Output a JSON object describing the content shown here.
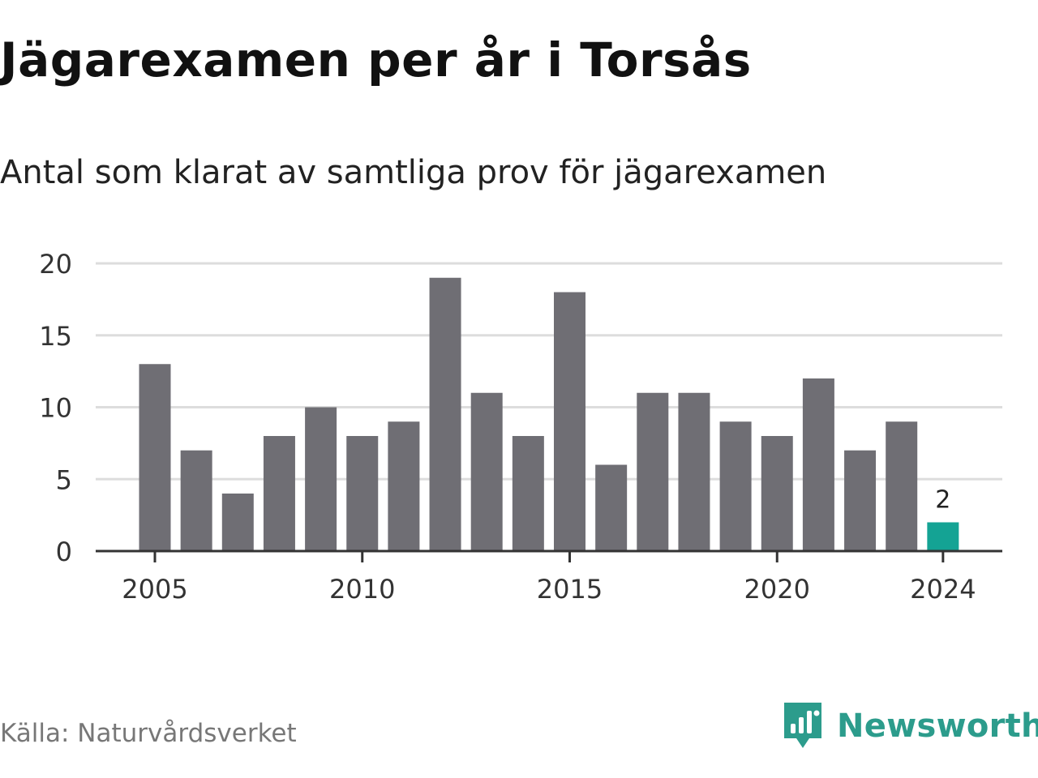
{
  "title": "Jägarexamen per år i Torsås",
  "subtitle": "Antal som klarat av samtliga prov för jägarexamen",
  "source": "Källa: Naturvårdsverket",
  "brand": "Newsworthy",
  "colors": {
    "bar": "#6f6e74",
    "highlight": "#14a394",
    "grid": "#dddddd",
    "axis": "#333333",
    "brand": "#2c9c8c"
  },
  "chart_data": {
    "type": "bar",
    "categories": [
      "2005",
      "2006",
      "2007",
      "2008",
      "2009",
      "2010",
      "2011",
      "2012",
      "2013",
      "2014",
      "2015",
      "2016",
      "2017",
      "2018",
      "2019",
      "2020",
      "2021",
      "2022",
      "2023",
      "2024"
    ],
    "values": [
      13,
      7,
      4,
      8,
      10,
      8,
      9,
      19,
      11,
      8,
      18,
      6,
      11,
      11,
      9,
      8,
      12,
      7,
      9,
      2
    ],
    "highlight": "2024",
    "highlight_label": "2",
    "ylim": [
      0,
      20
    ],
    "yticks": [
      0,
      5,
      10,
      15,
      20
    ],
    "xticks": [
      "2005",
      "2010",
      "2015",
      "2020",
      "2024"
    ],
    "grid": true
  }
}
